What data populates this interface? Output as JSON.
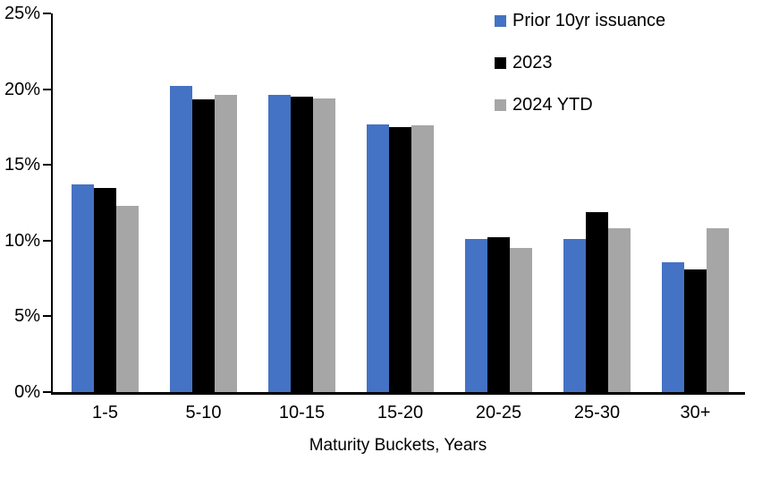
{
  "chart_data": {
    "type": "bar",
    "title": "",
    "xlabel": "Maturity Buckets, Years",
    "ylabel": "",
    "unit": "%",
    "grid": false,
    "legend_position": "top-right",
    "categories": [
      "1-5",
      "5-10",
      "10-15",
      "15-20",
      "20-25",
      "25-30",
      "30+"
    ],
    "series": [
      {
        "name": "Prior 10yr issuance",
        "color": "#4472C4",
        "values": [
          13.7,
          20.2,
          19.6,
          17.7,
          10.1,
          10.1,
          8.6
        ]
      },
      {
        "name": "2023",
        "color": "#000000",
        "values": [
          13.5,
          19.3,
          19.5,
          17.5,
          10.2,
          11.9,
          8.1
        ]
      },
      {
        "name": "2024 YTD",
        "color": "#A6A6A6",
        "values": [
          12.3,
          19.6,
          19.4,
          17.6,
          9.5,
          10.8,
          10.8
        ]
      }
    ],
    "y_axis": {
      "min": 0,
      "max": 25,
      "tick_step": 5,
      "tick_labels": [
        "0%",
        "5%",
        "10%",
        "15%",
        "20%",
        "25%"
      ]
    }
  },
  "colors": {
    "background": "#FFFFFF",
    "axis": "#000000",
    "text": "#000000"
  }
}
